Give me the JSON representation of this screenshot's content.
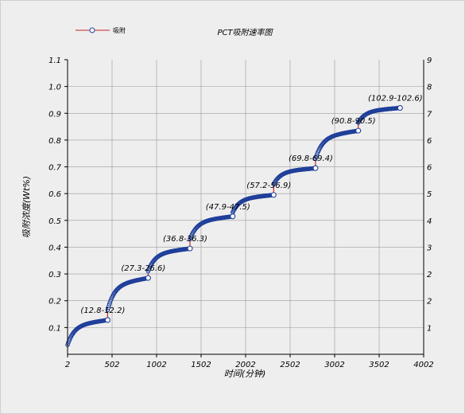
{
  "chart_data": {
    "type": "scatter",
    "title": "PCT吸附速率图",
    "xlabel": "时间(分钟)",
    "ylabel": "吸附浓度(Wt%)",
    "xlim": [
      2,
      4002
    ],
    "ylim": [
      0,
      1.1
    ],
    "x_ticks": [
      "2",
      "502",
      "1002",
      "1502",
      "2002",
      "2502",
      "3002",
      "3502",
      "4002"
    ],
    "y_ticks": [
      "0.1",
      "0.2",
      "0.3",
      "0.4",
      "0.5",
      "0.6",
      "0.7",
      "0.8",
      "0.9",
      "1.0",
      "1.1"
    ],
    "right_ticks": [
      "1",
      "2",
      "2",
      "3",
      "4",
      "5",
      "6",
      "6",
      "7",
      "8",
      "9"
    ],
    "grid": true,
    "legend": {
      "position": "top-left",
      "entries": [
        "吸附"
      ]
    },
    "colors": {
      "line": "#cc2222",
      "marker": "#1f3f9a",
      "grid": "#9a9a9a",
      "background": "#eeeeee"
    },
    "stages": [
      {
        "label": "(12.8-12.2)",
        "x_start": 2,
        "x_end": 452,
        "y_start": 0.035,
        "y_end": 0.128
      },
      {
        "label": "(27.3-26.6)",
        "x_start": 452,
        "x_end": 907,
        "y_start": 0.165,
        "y_end": 0.285
      },
      {
        "label": "(36.8-36.3)",
        "x_start": 907,
        "x_end": 1377,
        "y_start": 0.31,
        "y_end": 0.395
      },
      {
        "label": "(47.9-47.5)",
        "x_start": 1377,
        "x_end": 1857,
        "y_start": 0.43,
        "y_end": 0.515
      },
      {
        "label": "(57.2-56.9)",
        "x_start": 1857,
        "x_end": 2317,
        "y_start": 0.53,
        "y_end": 0.595
      },
      {
        "label": "(69.8-69.4)",
        "x_start": 2317,
        "x_end": 2787,
        "y_start": 0.635,
        "y_end": 0.695
      },
      {
        "label": "(90.8-90.5)",
        "x_start": 2787,
        "x_end": 3267,
        "y_start": 0.73,
        "y_end": 0.835
      },
      {
        "label": "(102.9-102.6)",
        "x_start": 3267,
        "x_end": 3737,
        "y_start": 0.865,
        "y_end": 0.92
      }
    ]
  }
}
